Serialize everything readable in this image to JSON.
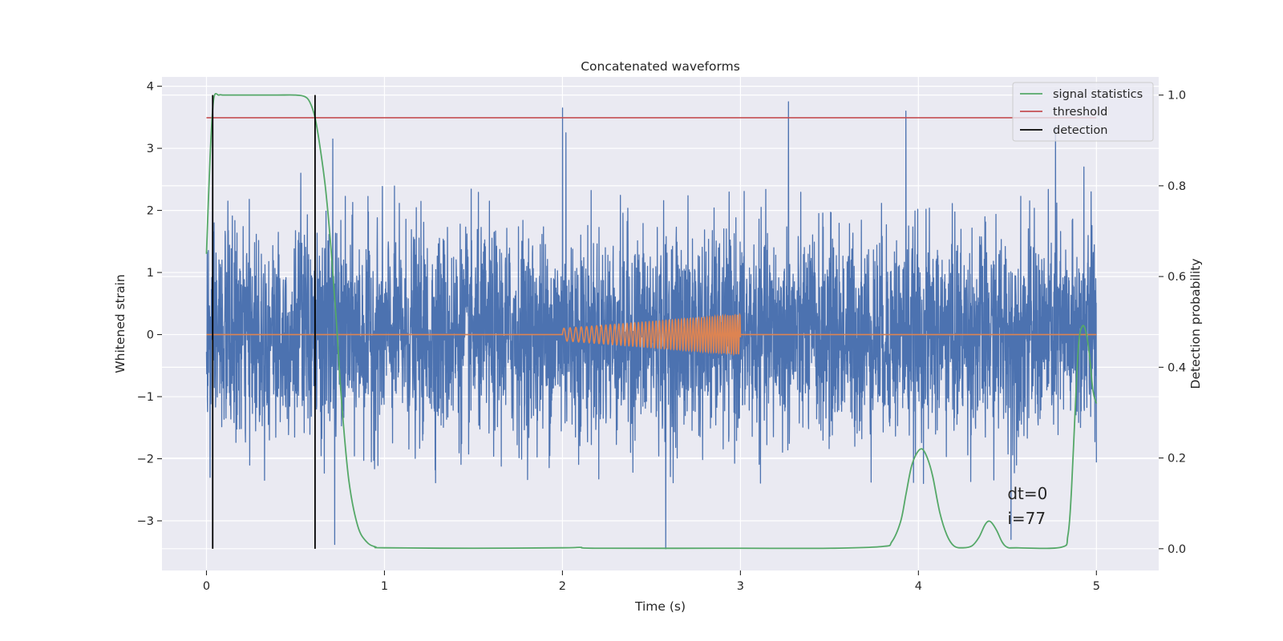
{
  "chart_data": {
    "type": "line",
    "title": "Concatenated waveforms",
    "xlabel": "Time (s)",
    "ylabel": "Whitened strain",
    "ylabel_right": "Detection probability",
    "xlim": [
      -0.25,
      5.35
    ],
    "ylim": [
      -3.8,
      4.15
    ],
    "ylim_right": [
      -0.048,
      1.04
    ],
    "x_ticks": [
      0,
      1,
      2,
      3,
      4,
      5
    ],
    "y_ticks": [
      -3,
      -2,
      -1,
      0,
      1,
      2,
      3,
      4
    ],
    "y_ticks_right": [
      0.0,
      0.2,
      0.4,
      0.6,
      0.8,
      1.0
    ],
    "x_tick_labels": [
      "0",
      "1",
      "2",
      "3",
      "4",
      "5"
    ],
    "y_tick_labels": [
      "−3",
      "−2",
      "−1",
      "0",
      "1",
      "2",
      "3",
      "4"
    ],
    "y_tick_labels_right": [
      "0.0",
      "0.2",
      "0.4",
      "0.6",
      "0.8",
      "1.0"
    ],
    "grid": true,
    "legend_position": "top-right",
    "colors": {
      "background": "#eaeaf2",
      "strain": "#4c72b0",
      "injection": "#dd8452",
      "signal_statistics": "#55a868",
      "threshold": "#c44e52",
      "detection": "#000000"
    },
    "series": [
      {
        "key": "strain",
        "axis": "left",
        "description_visible": false,
        "x_range": [
          0,
          5
        ],
        "noise_std": 0.82,
        "peaks": [
          [
            0.02,
            -2.3
          ],
          [
            0.12,
            2.15
          ],
          [
            0.53,
            2.6
          ],
          [
            0.61,
            2.55
          ],
          [
            0.71,
            3.15
          ],
          [
            0.72,
            -3.38
          ],
          [
            2.0,
            3.65
          ],
          [
            2.02,
            3.25
          ],
          [
            2.58,
            -3.45
          ],
          [
            3.27,
            3.75
          ],
          [
            3.93,
            3.6
          ],
          [
            4.52,
            -3.3
          ],
          [
            4.77,
            3.35
          ],
          [
            4.93,
            2.7
          ],
          [
            4.97,
            2.3
          ]
        ]
      },
      {
        "key": "injection",
        "axis": "left",
        "x_range": [
          0,
          5
        ],
        "chirp_start": 2.0,
        "chirp_end": 3.0,
        "chirp_amp_start": 0.1,
        "chirp_amp_end": 0.32,
        "chirp_freq_start": 28,
        "chirp_freq_end": 75
      },
      {
        "key": "signal_statistics",
        "name": "signal statistics",
        "axis": "right",
        "x": [
          0.0,
          0.02,
          0.04,
          0.07,
          0.1,
          0.2,
          0.3,
          0.4,
          0.5,
          0.55,
          0.58,
          0.61,
          0.64,
          0.67,
          0.7,
          0.73,
          0.76,
          0.8,
          0.85,
          0.9,
          0.95,
          1.0,
          1.5,
          2.0,
          2.1,
          2.2,
          3.0,
          3.5,
          3.8,
          3.85,
          3.9,
          3.93,
          3.96,
          3.99,
          4.02,
          4.05,
          4.08,
          4.12,
          4.16,
          4.2,
          4.25,
          4.3,
          4.34,
          4.37,
          4.39,
          4.41,
          4.44,
          4.47,
          4.5,
          4.55,
          4.8,
          4.84,
          4.86,
          4.88,
          4.9,
          4.92,
          4.94,
          4.96,
          4.98,
          5.0
        ],
        "values": [
          0.65,
          0.86,
          0.99,
          1.0,
          1.0,
          1.0,
          1.0,
          1.0,
          1.0,
          0.997,
          0.985,
          0.95,
          0.88,
          0.79,
          0.66,
          0.5,
          0.32,
          0.15,
          0.05,
          0.015,
          0.004,
          0.002,
          0.001,
          0.002,
          0.003,
          0.001,
          0.001,
          0.001,
          0.005,
          0.015,
          0.06,
          0.12,
          0.18,
          0.21,
          0.22,
          0.2,
          0.16,
          0.08,
          0.03,
          0.006,
          0.002,
          0.006,
          0.025,
          0.05,
          0.06,
          0.058,
          0.04,
          0.015,
          0.003,
          0.002,
          0.003,
          0.03,
          0.13,
          0.3,
          0.45,
          0.49,
          0.48,
          0.43,
          0.35,
          0.32
        ]
      },
      {
        "key": "threshold",
        "name": "threshold",
        "axis": "right",
        "x": [
          0,
          5
        ],
        "values": [
          0.95,
          0.95
        ]
      },
      {
        "key": "detection",
        "name": "detection",
        "axis": "right",
        "x_positions": [
          0.035,
          0.61
        ],
        "y_span": [
          0.0,
          1.0
        ]
      }
    ],
    "legend": [
      "signal statistics",
      "threshold",
      "detection"
    ],
    "annotations": [
      {
        "text": "dt=0",
        "x": 4.5,
        "y": -2.65
      },
      {
        "text": "i=77",
        "x": 4.5,
        "y": -3.05
      }
    ]
  }
}
